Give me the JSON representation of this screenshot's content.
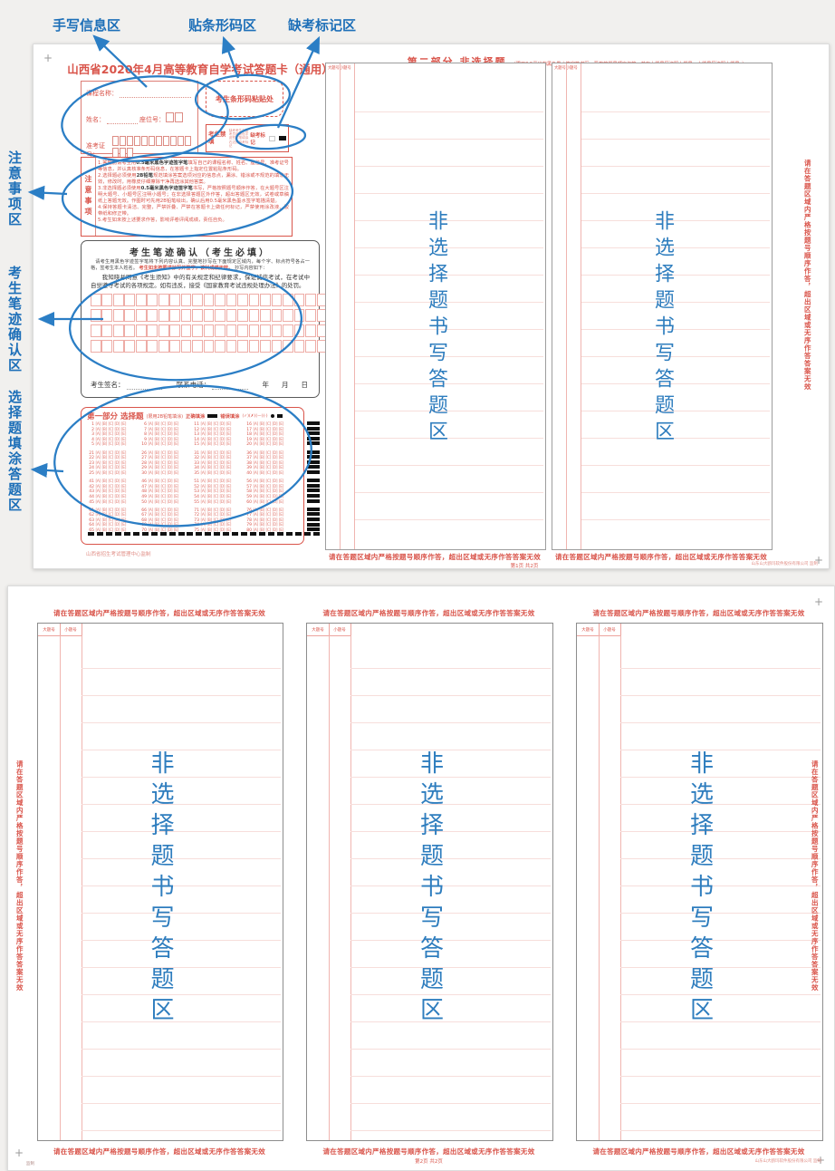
{
  "colors": {
    "accent_blue": "#1d6fb8",
    "form_red": "#d9544a",
    "mark_black": "#111111",
    "area_blue": "#2e7dbe"
  },
  "annotations": {
    "top": [
      {
        "label": "手写信息区"
      },
      {
        "label": "贴条形码区"
      },
      {
        "label": "缺考标记区"
      }
    ],
    "left": [
      {
        "label": "注意事项区"
      },
      {
        "label": "考生笔迹确认区"
      },
      {
        "label": "选择题填涂答题区"
      }
    ]
  },
  "shared": {
    "warning": "请在答题区域内严格按题号顺序作答，超出区域或无序作答答案无效",
    "area_text": "非选择题书写答题区"
  },
  "sheet1": {
    "title": "山西省2020年4月高等教育自学考试答题卡（通用）",
    "info": {
      "course_label": "课程名称：",
      "name_label": "姓名：",
      "seat_label": "座位号：",
      "ticket_label": "准考证号：",
      "seat_boxes": 2,
      "ticket_boxes": 14
    },
    "barcode": {
      "label": "考生条形码粘贴处"
    },
    "forbid": {
      "label": "考生禁填",
      "note": "缺考考生由监考员用黑色字迹签字笔填涂右边的缺考标记",
      "absent_label": "缺考标记"
    },
    "notice": {
      "side_label": "注意事项",
      "items": [
        {
          "runs": [
            {
              "t": "1.答题前请考生用",
              "c": "r"
            },
            {
              "t": "0.5毫米黑色字迹签字笔",
              "c": "b"
            },
            {
              "t": "填写自己的课程名称、姓名、座位号、准考证号等信息，并认真核准条形码信息，在答题卡上指定位置粘贴条形码。",
              "c": "r"
            }
          ]
        },
        {
          "runs": [
            {
              "t": "2.选择题必须使用",
              "c": "r"
            },
            {
              "t": "2B铅笔",
              "c": "b"
            },
            {
              "t": "规范填涂答案选项对应的信息点，漏涂、错涂或不规范的填涂无效，修改时，用橡皮仔细擦除干净再选涂其他答案。",
              "c": "r"
            }
          ]
        },
        {
          "runs": [
            {
              "t": "3.非选择题必须使用",
              "c": "r"
            },
            {
              "t": "0.5毫米黑色字迹签字笔",
              "c": "b"
            },
            {
              "t": "书写，严格按照题号顺序作答，在大题号区注明大题号、小题号区注明小题号；在非选择答题区外作答，超出答题区无效，试卷或草稿纸上答题无效。作图时可先用2B铅笔绘出，确认后用0.5毫米黑色墨水签字笔描清楚。",
              "c": "r"
            }
          ]
        },
        {
          "runs": [
            {
              "t": "4.保持答题卡清洁、完整，严禁折叠、严禁在答题卡上做任何标记，严禁使用涂改液、胶带纸和修正带。",
              "c": "r"
            }
          ]
        },
        {
          "runs": [
            {
              "t": "5.考生如未按上述要求作答，影响评卷评阅成绩，责任自负。",
              "c": "r"
            }
          ]
        }
      ]
    },
    "confirm": {
      "title": "考生笔迹确认（考生必填）",
      "instr_a": "请考生用黑色字迹签字笔将下列内容认真、完整地抄写在下面规定区域内，每个字、标点符号各占一格，签考生本人姓名。",
      "instr_red": "考生如未按要求抄写并签字，该科成绩无效。",
      "instr_b": "抄写内容如下：",
      "statement": "我知晓并同意《考生须知》中的有关规定和纪律要求，保证诚信考试，在考试中自觉遵守考试的各项规定。如有违反，接受《国家教育考试违规处理办法》的处罚。",
      "grid": {
        "rows": 4,
        "cols": 22
      },
      "sign_label": "考生签名：",
      "phone_label": "联系电话：",
      "year": "年",
      "month": "月",
      "day": "日"
    },
    "choice": {
      "part_label": "第一部分",
      "title": "选择题",
      "subtitle": "(限用2B铅笔填涂)",
      "correct_label": "正确填涂",
      "wrong_label": "错误填涂",
      "wrong_examples": "(✓)(✗)(—)(·)",
      "options": [
        "A",
        "B",
        "C",
        "D",
        "E"
      ],
      "blocks": 4,
      "rows_per_block": 5,
      "cols_per_block": 4,
      "timing_bars": 20,
      "bottom_dashes": 26
    },
    "footer": "山西省招生考试管理中心监制",
    "part2": {
      "title": "第二部分 非选择题",
      "subtitle": "（限用0.5毫米的黑色墨水签字笔书写，严格按题号顺序作答，并在大题号区注明大题号、小题号区注明小题号。）",
      "col_header": "大题号小题号",
      "page_label": "第1页 共2页",
      "maker_mark": "山东山大鸥玛软件股份有限公司 监制"
    }
  },
  "sheet2": {
    "big_label": "大题号",
    "small_label": "小题号",
    "page_label": "第2页 共2页",
    "maker_left": "监制",
    "maker_mark": "山东山大鸥玛软件股份有限公司 监制"
  }
}
